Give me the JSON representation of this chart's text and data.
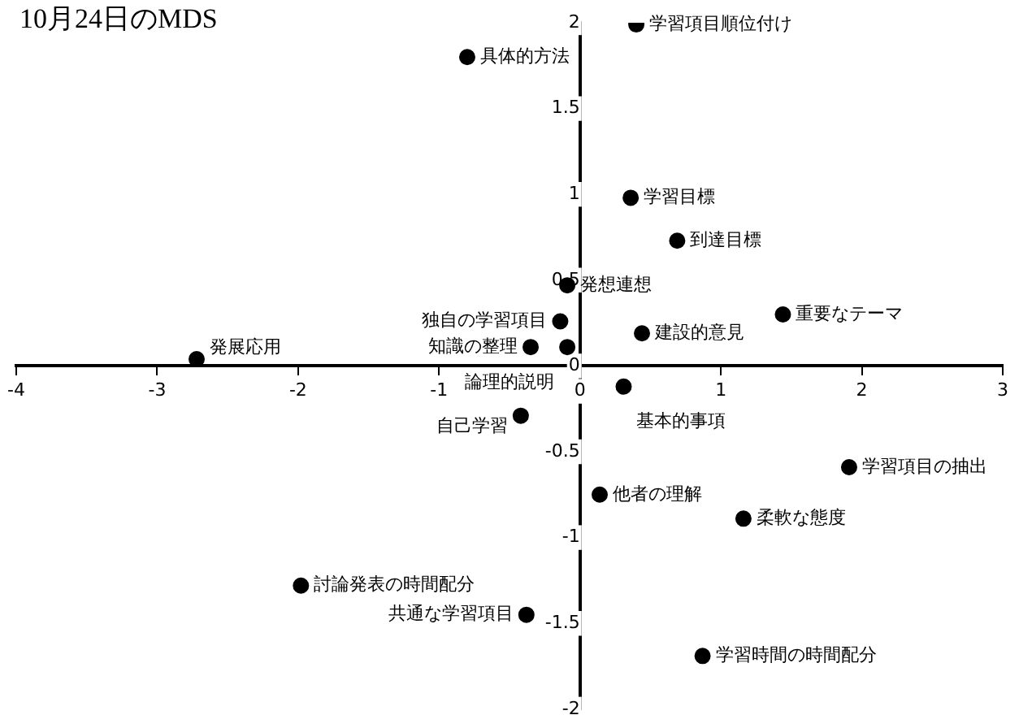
{
  "chart_data": {
    "type": "scatter",
    "title": "10月24日のMDS",
    "xlim": [
      -4,
      3
    ],
    "ylim": [
      -2,
      2
    ],
    "xticks": [
      -4,
      -3,
      -2,
      -1,
      0,
      1,
      2,
      3
    ],
    "yticks": [
      -2,
      -1.5,
      -1,
      -0.5,
      0,
      0.5,
      1,
      1.5,
      2
    ],
    "grid": false,
    "legend": false,
    "marker": "circle",
    "series": [
      {
        "color": "#000000",
        "x": [
          0.4,
          -0.8,
          0.36,
          0.69,
          -0.09,
          -0.14,
          1.44,
          0.44,
          -0.35,
          -0.09,
          -2.72,
          0.31,
          -0.42,
          1.91,
          0.14,
          1.16,
          -1.98,
          -0.38,
          0.87
        ],
        "values": [
          1.99,
          1.8,
          0.98,
          0.73,
          0.47,
          0.26,
          0.3,
          0.19,
          0.11,
          0.11,
          0.04,
          -0.12,
          -0.29,
          -0.59,
          -0.75,
          -0.89,
          -1.28,
          -1.45,
          -1.69
        ]
      }
    ],
    "annotations": [
      {
        "text": "学習項目順位付け",
        "x": 0.4,
        "y": 1.99
      },
      {
        "text": "具体的方法",
        "x": -0.8,
        "y": 1.8
      },
      {
        "text": "学習目標",
        "x": 0.36,
        "y": 0.98
      },
      {
        "text": "到達目標",
        "x": 0.69,
        "y": 0.73
      },
      {
        "text": "発想連想",
        "x": -0.09,
        "y": 0.47
      },
      {
        "text": "独自の学習項目",
        "x": -0.14,
        "y": 0.26
      },
      {
        "text": "重要なテーマ",
        "x": 1.44,
        "y": 0.3
      },
      {
        "text": "建設的意見",
        "x": 0.44,
        "y": 0.19
      },
      {
        "text": "知識の整理",
        "x": -0.35,
        "y": 0.11
      },
      {
        "text": "論理的説明",
        "x": -0.09,
        "y": 0.11
      },
      {
        "text": "発展応用",
        "x": -2.72,
        "y": 0.04
      },
      {
        "text": "基本的事項",
        "x": 0.31,
        "y": -0.12
      },
      {
        "text": "自己学習",
        "x": -0.42,
        "y": -0.29
      },
      {
        "text": "学習項目の抽出",
        "x": 1.91,
        "y": -0.59
      },
      {
        "text": "他者の理解",
        "x": 0.14,
        "y": -0.75
      },
      {
        "text": "柔軟な態度",
        "x": 1.16,
        "y": -0.89
      },
      {
        "text": "討論発表の時間配分",
        "x": -1.98,
        "y": -1.28
      },
      {
        "text": "共通な学習項目",
        "x": -0.38,
        "y": -1.45
      },
      {
        "text": "学習時間の時間配分",
        "x": 0.87,
        "y": -1.69
      }
    ]
  }
}
